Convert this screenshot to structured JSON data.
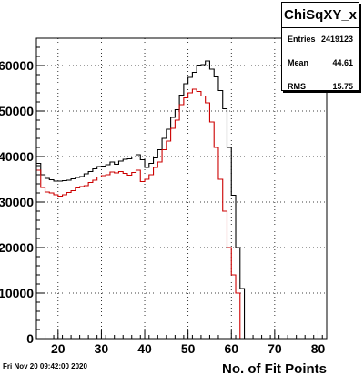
{
  "chart_data": {
    "type": "histogram",
    "title": "",
    "xlabel": "No. of Fit Points",
    "ylabel": "",
    "xlim": [
      15,
      82
    ],
    "ylim": [
      0,
      66000
    ],
    "grid": true,
    "xticks": [
      20,
      30,
      40,
      50,
      60,
      70,
      80
    ],
    "yticks": [
      0,
      10000,
      20000,
      30000,
      40000,
      50000,
      60000
    ],
    "bin_start": 15,
    "bin_width": 1,
    "series": [
      {
        "color": "#000000",
        "values": [
          38500,
          36000,
          35200,
          34900,
          34600,
          34600,
          34700,
          34800,
          35100,
          35400,
          35600,
          36200,
          36700,
          37300,
          37800,
          37900,
          38200,
          38800,
          38300,
          39000,
          39400,
          39500,
          39900,
          40400,
          39300,
          37600,
          38500,
          39700,
          41500,
          44000,
          46000,
          48600,
          50300,
          53500,
          56000,
          57400,
          58500,
          60100,
          60200,
          61000,
          59200,
          57500,
          54500,
          50500,
          42000,
          31500,
          20000,
          11000,
          0,
          0
        ]
      },
      {
        "color": "#cc0000",
        "values": [
          37000,
          33200,
          32200,
          32000,
          31600,
          31300,
          31600,
          32100,
          32500,
          33100,
          33400,
          33600,
          34300,
          34800,
          35500,
          35800,
          36000,
          36600,
          36400,
          36700,
          36300,
          35900,
          36500,
          37000,
          34500,
          35000,
          36000,
          37600,
          38800,
          41500,
          43400,
          46200,
          48000,
          51400,
          52900,
          54000,
          54800,
          54300,
          53300,
          51800,
          47600,
          42000,
          35000,
          28000,
          20000,
          14000,
          10000,
          0,
          0,
          0
        ]
      }
    ]
  },
  "stats": {
    "name": "ChiSqXY_x",
    "entries_label": "Entries",
    "entries": "2419123",
    "mean_label": "Mean",
    "mean": "44.61",
    "rms_label": "RMS",
    "rms": "15.75"
  },
  "footer": {
    "date": "Fri Nov 20 09:42:00 2020"
  }
}
